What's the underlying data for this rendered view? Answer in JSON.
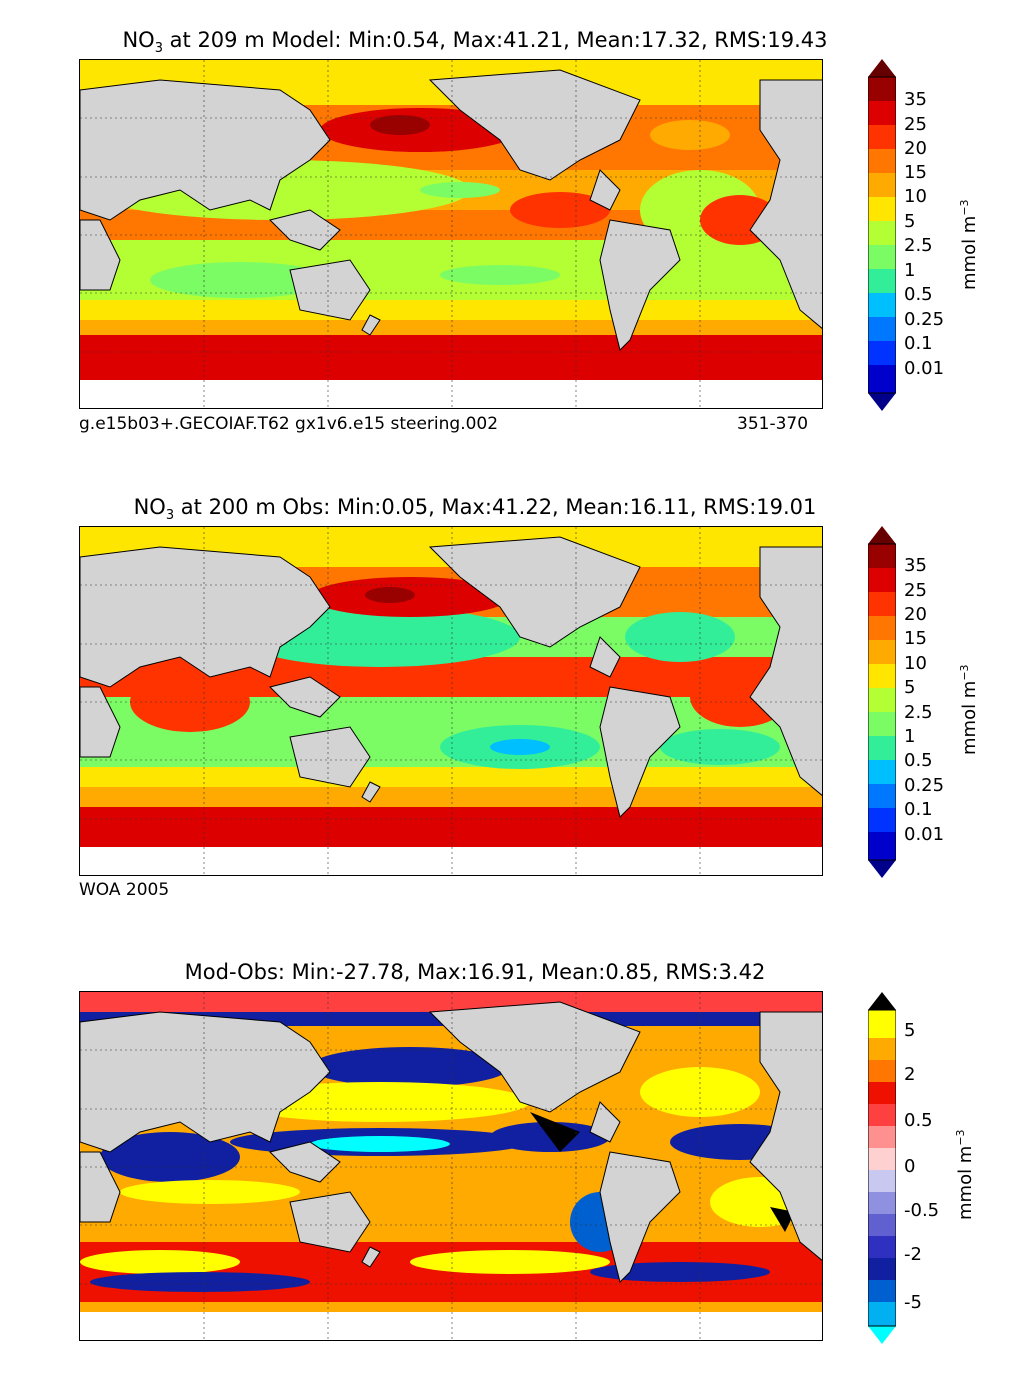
{
  "panels": [
    {
      "title_prefix": "NO",
      "title_sub": "3",
      "title_rest": " at 209 m Model: Min:0.54, Max:41.21, Mean:17.32, RMS:19.43",
      "footer_left": "g.e15b03+.GECOIAF.T62 gx1v6.e15 steering.002",
      "footer_right": "351-370",
      "colorbar_ticks": [
        "35",
        "25",
        "20",
        "15",
        "10",
        "5",
        "2.5",
        "1",
        "0.5",
        "0.25",
        "0.1",
        "0.01"
      ],
      "unit_main": "mmol m",
      "unit_sup": "−3"
    },
    {
      "title_prefix": "NO",
      "title_sub": "3",
      "title_rest": " at 200 m Obs: Min:0.05, Max:41.22, Mean:16.11, RMS:19.01",
      "footer_left": "WOA 2005",
      "footer_right": "",
      "colorbar_ticks": [
        "35",
        "25",
        "20",
        "15",
        "10",
        "5",
        "2.5",
        "1",
        "0.5",
        "0.25",
        "0.1",
        "0.01"
      ],
      "unit_main": "mmol m",
      "unit_sup": "−3"
    },
    {
      "title_prefix": "",
      "title_sub": "",
      "title_rest": "Mod-Obs: Min:-27.78, Max:16.91, Mean:0.85, RMS:3.42",
      "footer_left": "",
      "footer_right": "",
      "colorbar_ticks": [
        "5",
        "2",
        "0.5",
        "0",
        "-0.5",
        "-2",
        "-5"
      ],
      "unit_main": "mmol m",
      "unit_sup": "−3"
    }
  ],
  "colors": {
    "land": "#d3d3d3",
    "seq_scale": [
      "#00008b",
      "#0000cd",
      "#0033ff",
      "#0077ff",
      "#00bfff",
      "#00e5e5",
      "#33ee99",
      "#7cfc64",
      "#b3ff33",
      "#ffe600",
      "#ffaa00",
      "#ff7700",
      "#ff3300",
      "#dd0000",
      "#990000",
      "#660000"
    ],
    "div_scale": [
      "#00ffff",
      "#00b0f0",
      "#0060d0",
      "#1020a0",
      "#3030c0",
      "#6060d0",
      "#9090e0",
      "#c8c8f0",
      "#ffd0d0",
      "#ff9090",
      "#ff4040",
      "#ee1100",
      "#ff7700",
      "#ffaa00",
      "#ffff00",
      "#000000"
    ]
  }
}
